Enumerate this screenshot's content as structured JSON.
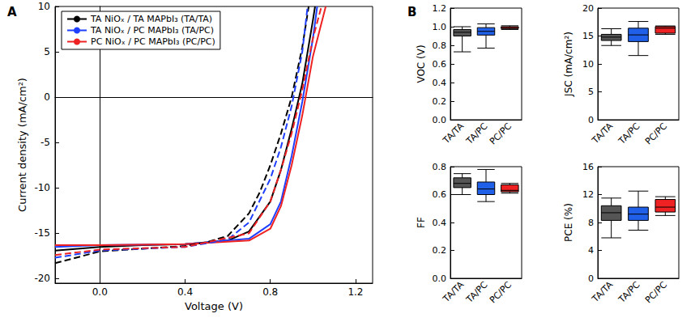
{
  "chart_data": [
    {
      "type": "line",
      "title": "A",
      "x_label": "Voltage (V)",
      "y_label": "Current density (mA/cm²)",
      "xlim": [
        -0.21,
        1.28
      ],
      "xticks": [
        {
          "value": 0,
          "label": "0.0"
        },
        {
          "value": 0.4,
          "label": "0.4"
        },
        {
          "value": 0.8,
          "label": "0.8"
        },
        {
          "value": 1.2,
          "label": "1.2"
        }
      ],
      "ylim": [
        -20.5,
        10
      ],
      "yticks": [
        -20,
        -15,
        -10,
        -5,
        0,
        5,
        10
      ],
      "grid": false,
      "legend": "upper left",
      "series": [
        {
          "name": "TA NiOₓ / TA MAPbI₃ (TA/TA)",
          "color": "#000000",
          "line_style": "solid",
          "x": [
            -0.21,
            0,
            0.2,
            0.4,
            0.6,
            0.7,
            0.8,
            0.85,
            0.9,
            0.95,
            1.0,
            1.01
          ],
          "values": [
            -16.9,
            -16.5,
            -16.3,
            -16.2,
            -15.8,
            -14.8,
            -11.5,
            -8.0,
            -3.5,
            1.5,
            8.5,
            10
          ]
        },
        {
          "name": "TA NiOₓ / PC MAPbI₃ (TA/PC)",
          "color": "#1f3fff",
          "line_style": "solid",
          "x": [
            -0.21,
            0,
            0.4,
            0.7,
            0.8,
            0.85,
            0.9,
            0.95,
            1.0,
            1.02
          ],
          "values": [
            -16.5,
            -16.3,
            -16.2,
            -15.6,
            -14.0,
            -11.5,
            -6.5,
            -0.5,
            6.5,
            10
          ]
        },
        {
          "name": "PC NiOₓ / PC MAPbI₃ (PC/PC)",
          "color": "#ee2222",
          "line_style": "solid",
          "x": [
            -0.21,
            0,
            0.4,
            0.7,
            0.8,
            0.85,
            0.9,
            0.95,
            1.0,
            1.06
          ],
          "values": [
            -16.3,
            -16.3,
            -16.2,
            -15.8,
            -14.5,
            -12.0,
            -7.5,
            -2.0,
            4.5,
            10
          ]
        },
        {
          "name": "TA NiOₓ / TA MAPbI₃ (TA/TA)",
          "color": "#000000",
          "line_style": "dashed",
          "x": [
            -0.21,
            0,
            0.2,
            0.4,
            0.5,
            0.6,
            0.7,
            0.75,
            0.8,
            0.85,
            0.9,
            0.95,
            0.98
          ],
          "values": [
            -18.3,
            -17.0,
            -16.7,
            -16.4,
            -16.0,
            -15.3,
            -12.8,
            -10.5,
            -7.5,
            -4.0,
            0,
            5.5,
            10
          ]
        },
        {
          "name": "TA NiOₓ / PC MAPbI₃ (TA/PC)",
          "color": "#1f3fff",
          "line_style": "dashed",
          "x": [
            -0.21,
            0,
            0.4,
            0.6,
            0.7,
            0.8,
            0.85,
            0.9,
            0.95,
            0.975
          ],
          "values": [
            -17.7,
            -16.9,
            -16.5,
            -15.7,
            -13.8,
            -9.0,
            -5.5,
            -1.0,
            5.0,
            10
          ]
        },
        {
          "name": "PC NiOₓ / PC MAPbI₃ (PC/PC)",
          "color": "#ee2222",
          "line_style": "dashed",
          "x": [
            -0.21,
            0,
            0.4,
            0.7,
            0.8,
            0.85,
            0.9,
            0.95,
            1.0,
            1.04
          ],
          "values": [
            -17.4,
            -16.8,
            -16.5,
            -15.0,
            -11.5,
            -8.0,
            -4.0,
            0.8,
            6.5,
            10
          ]
        }
      ]
    },
    {
      "type": "boxplot",
      "title": "B",
      "y_label": "VOC (V)",
      "categories": [
        "TA/TA",
        "TA/PC",
        "PC/PC"
      ],
      "colors": [
        "#555555",
        "#2060e8",
        "#ee2222"
      ],
      "ylim": [
        0,
        1.2
      ],
      "yticks": [
        {
          "value": 0,
          "label": "0.0"
        },
        {
          "value": 0.2,
          "label": "0.2"
        },
        {
          "value": 0.4,
          "label": "0.4"
        },
        {
          "value": 0.6,
          "label": "0.6"
        },
        {
          "value": 0.8,
          "label": "0.8"
        },
        {
          "value": 1.0,
          "label": "1.0"
        },
        {
          "value": 1.2,
          "label": "1.2"
        }
      ],
      "grid": false,
      "values": [
        [
          0.73,
          0.9,
          0.94,
          0.97,
          1.0
        ],
        [
          0.77,
          0.91,
          0.95,
          0.99,
          1.03
        ],
        [
          0.97,
          0.98,
          0.99,
          1.0,
          1.01
        ]
      ]
    },
    {
      "type": "boxplot",
      "y_label": "JSC (mA/cm²)",
      "categories": [
        "TA/TA",
        "TA/PC",
        "PC/PC"
      ],
      "colors": [
        "#555555",
        "#2060e8",
        "#ee2222"
      ],
      "ylim": [
        0,
        20
      ],
      "yticks": [
        0,
        5,
        10,
        15,
        20
      ],
      "grid": false,
      "values": [
        [
          13.3,
          14.2,
          14.8,
          15.3,
          16.3
        ],
        [
          11.5,
          14.0,
          15.2,
          16.4,
          17.6
        ],
        [
          15.3,
          15.5,
          16.4,
          16.7,
          16.8
        ]
      ]
    },
    {
      "type": "boxplot",
      "y_label": "FF",
      "categories": [
        "TA/TA",
        "TA/PC",
        "PC/PC"
      ],
      "colors": [
        "#555555",
        "#2060e8",
        "#ee2222"
      ],
      "ylim": [
        0,
        0.8
      ],
      "yticks": [
        {
          "value": 0,
          "label": "0.0"
        },
        {
          "value": 0.2,
          "label": "0.2"
        },
        {
          "value": 0.4,
          "label": "0.4"
        },
        {
          "value": 0.6,
          "label": "0.6"
        },
        {
          "value": 0.8,
          "label": "0.8"
        }
      ],
      "grid": false,
      "values": [
        [
          0.6,
          0.65,
          0.68,
          0.72,
          0.75
        ],
        [
          0.55,
          0.6,
          0.64,
          0.69,
          0.78
        ],
        [
          0.61,
          0.62,
          0.63,
          0.67,
          0.68
        ]
      ]
    },
    {
      "type": "boxplot",
      "y_label": "PCE (%)",
      "categories": [
        "TA/TA",
        "TA/PC",
        "PC/PC"
      ],
      "colors": [
        "#555555",
        "#2060e8",
        "#ee2222"
      ],
      "ylim": [
        0,
        16
      ],
      "yticks": [
        0,
        4,
        8,
        12,
        16
      ],
      "grid": false,
      "values": [
        [
          5.8,
          8.3,
          9.4,
          10.4,
          11.5
        ],
        [
          6.9,
          8.3,
          9.2,
          10.2,
          12.5
        ],
        [
          9.0,
          9.5,
          10.2,
          11.3,
          11.7
        ]
      ]
    }
  ]
}
